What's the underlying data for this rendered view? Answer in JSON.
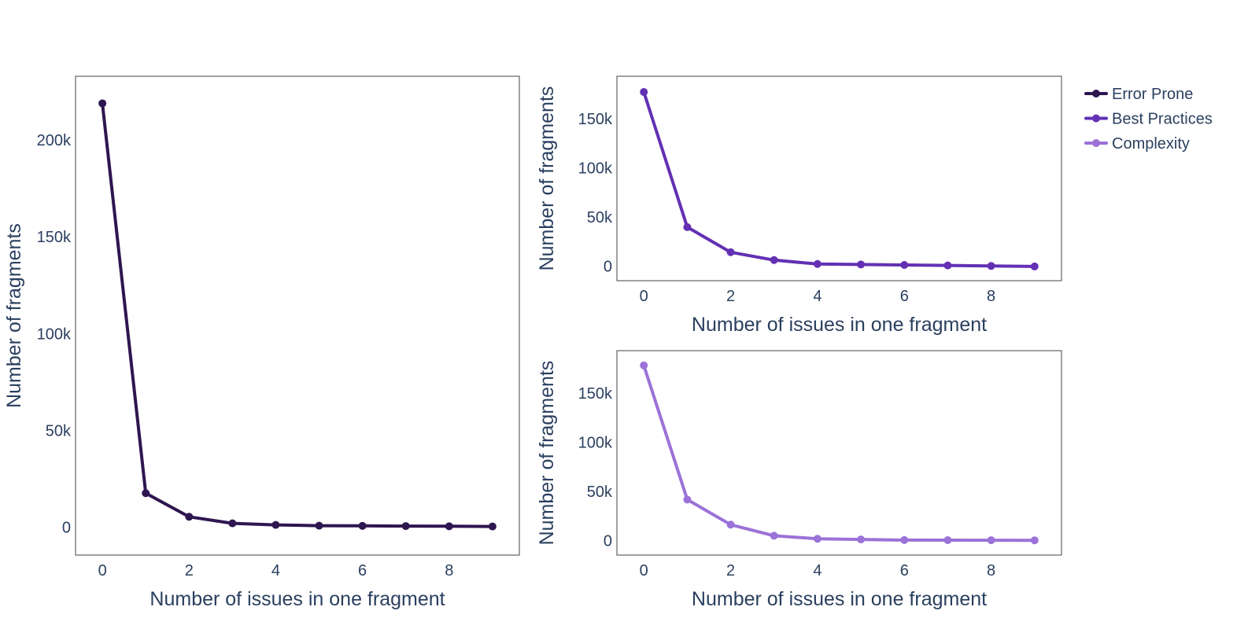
{
  "chart_data": [
    {
      "type": "line",
      "panel": "left",
      "xlabel": "Number of issues in one fragment",
      "ylabel": "Number of fragments",
      "xlim": [
        -0.62,
        9.62
      ],
      "ylim": [
        -14500,
        233000
      ],
      "xticks": [
        0,
        2,
        4,
        6,
        8
      ],
      "yticks": [
        {
          "value": 0,
          "label": "0"
        },
        {
          "value": 50000,
          "label": "50k"
        },
        {
          "value": 100000,
          "label": "100k"
        },
        {
          "value": 150000,
          "label": "150k"
        },
        {
          "value": 200000,
          "label": "200k"
        }
      ],
      "grid": false,
      "series": [
        {
          "name": "Error Prone",
          "color": "#2e1650",
          "x": [
            0,
            1,
            2,
            3,
            4,
            5,
            6,
            7,
            8,
            9
          ],
          "y": [
            219000,
            17500,
            5300,
            1900,
            1100,
            700,
            600,
            500,
            400,
            300
          ]
        }
      ]
    },
    {
      "type": "line",
      "panel": "top-right",
      "xlabel": "Number of issues in one fragment",
      "ylabel": "Number of fragments",
      "xlim": [
        -0.62,
        9.62
      ],
      "ylim": [
        -15000,
        193000
      ],
      "xticks": [
        0,
        2,
        4,
        6,
        8
      ],
      "yticks": [
        {
          "value": 0,
          "label": "0"
        },
        {
          "value": 50000,
          "label": "50k"
        },
        {
          "value": 100000,
          "label": "100k"
        },
        {
          "value": 150000,
          "label": "150k"
        }
      ],
      "grid": false,
      "series": [
        {
          "name": "Best Practices",
          "color": "#6330b4",
          "x": [
            0,
            1,
            2,
            3,
            4,
            5,
            6,
            7,
            8,
            9
          ],
          "y": [
            177000,
            39500,
            14000,
            6000,
            2000,
            1500,
            1000,
            500,
            0,
            -500
          ]
        }
      ]
    },
    {
      "type": "line",
      "panel": "bottom-right",
      "xlabel": "Number of issues in one fragment",
      "ylabel": "Number of fragments",
      "xlim": [
        -0.62,
        9.62
      ],
      "ylim": [
        -15000,
        193000
      ],
      "xticks": [
        0,
        2,
        4,
        6,
        8
      ],
      "yticks": [
        {
          "value": 0,
          "label": "0"
        },
        {
          "value": 50000,
          "label": "50k"
        },
        {
          "value": 100000,
          "label": "100k"
        },
        {
          "value": 150000,
          "label": "150k"
        }
      ],
      "grid": false,
      "series": [
        {
          "name": "Complexity",
          "color": "#9b72d8",
          "x": [
            0,
            1,
            2,
            3,
            4,
            5,
            6,
            7,
            8,
            9
          ],
          "y": [
            178000,
            41500,
            16000,
            4700,
            1600,
            900,
            300,
            200,
            100,
            0
          ]
        }
      ]
    }
  ],
  "legend": {
    "placement": "top-right",
    "items": [
      {
        "name": "Error Prone",
        "color": "#2e1650"
      },
      {
        "name": "Best Practices",
        "color": "#6330b4"
      },
      {
        "name": "Complexity",
        "color": "#9b72d8"
      }
    ]
  }
}
